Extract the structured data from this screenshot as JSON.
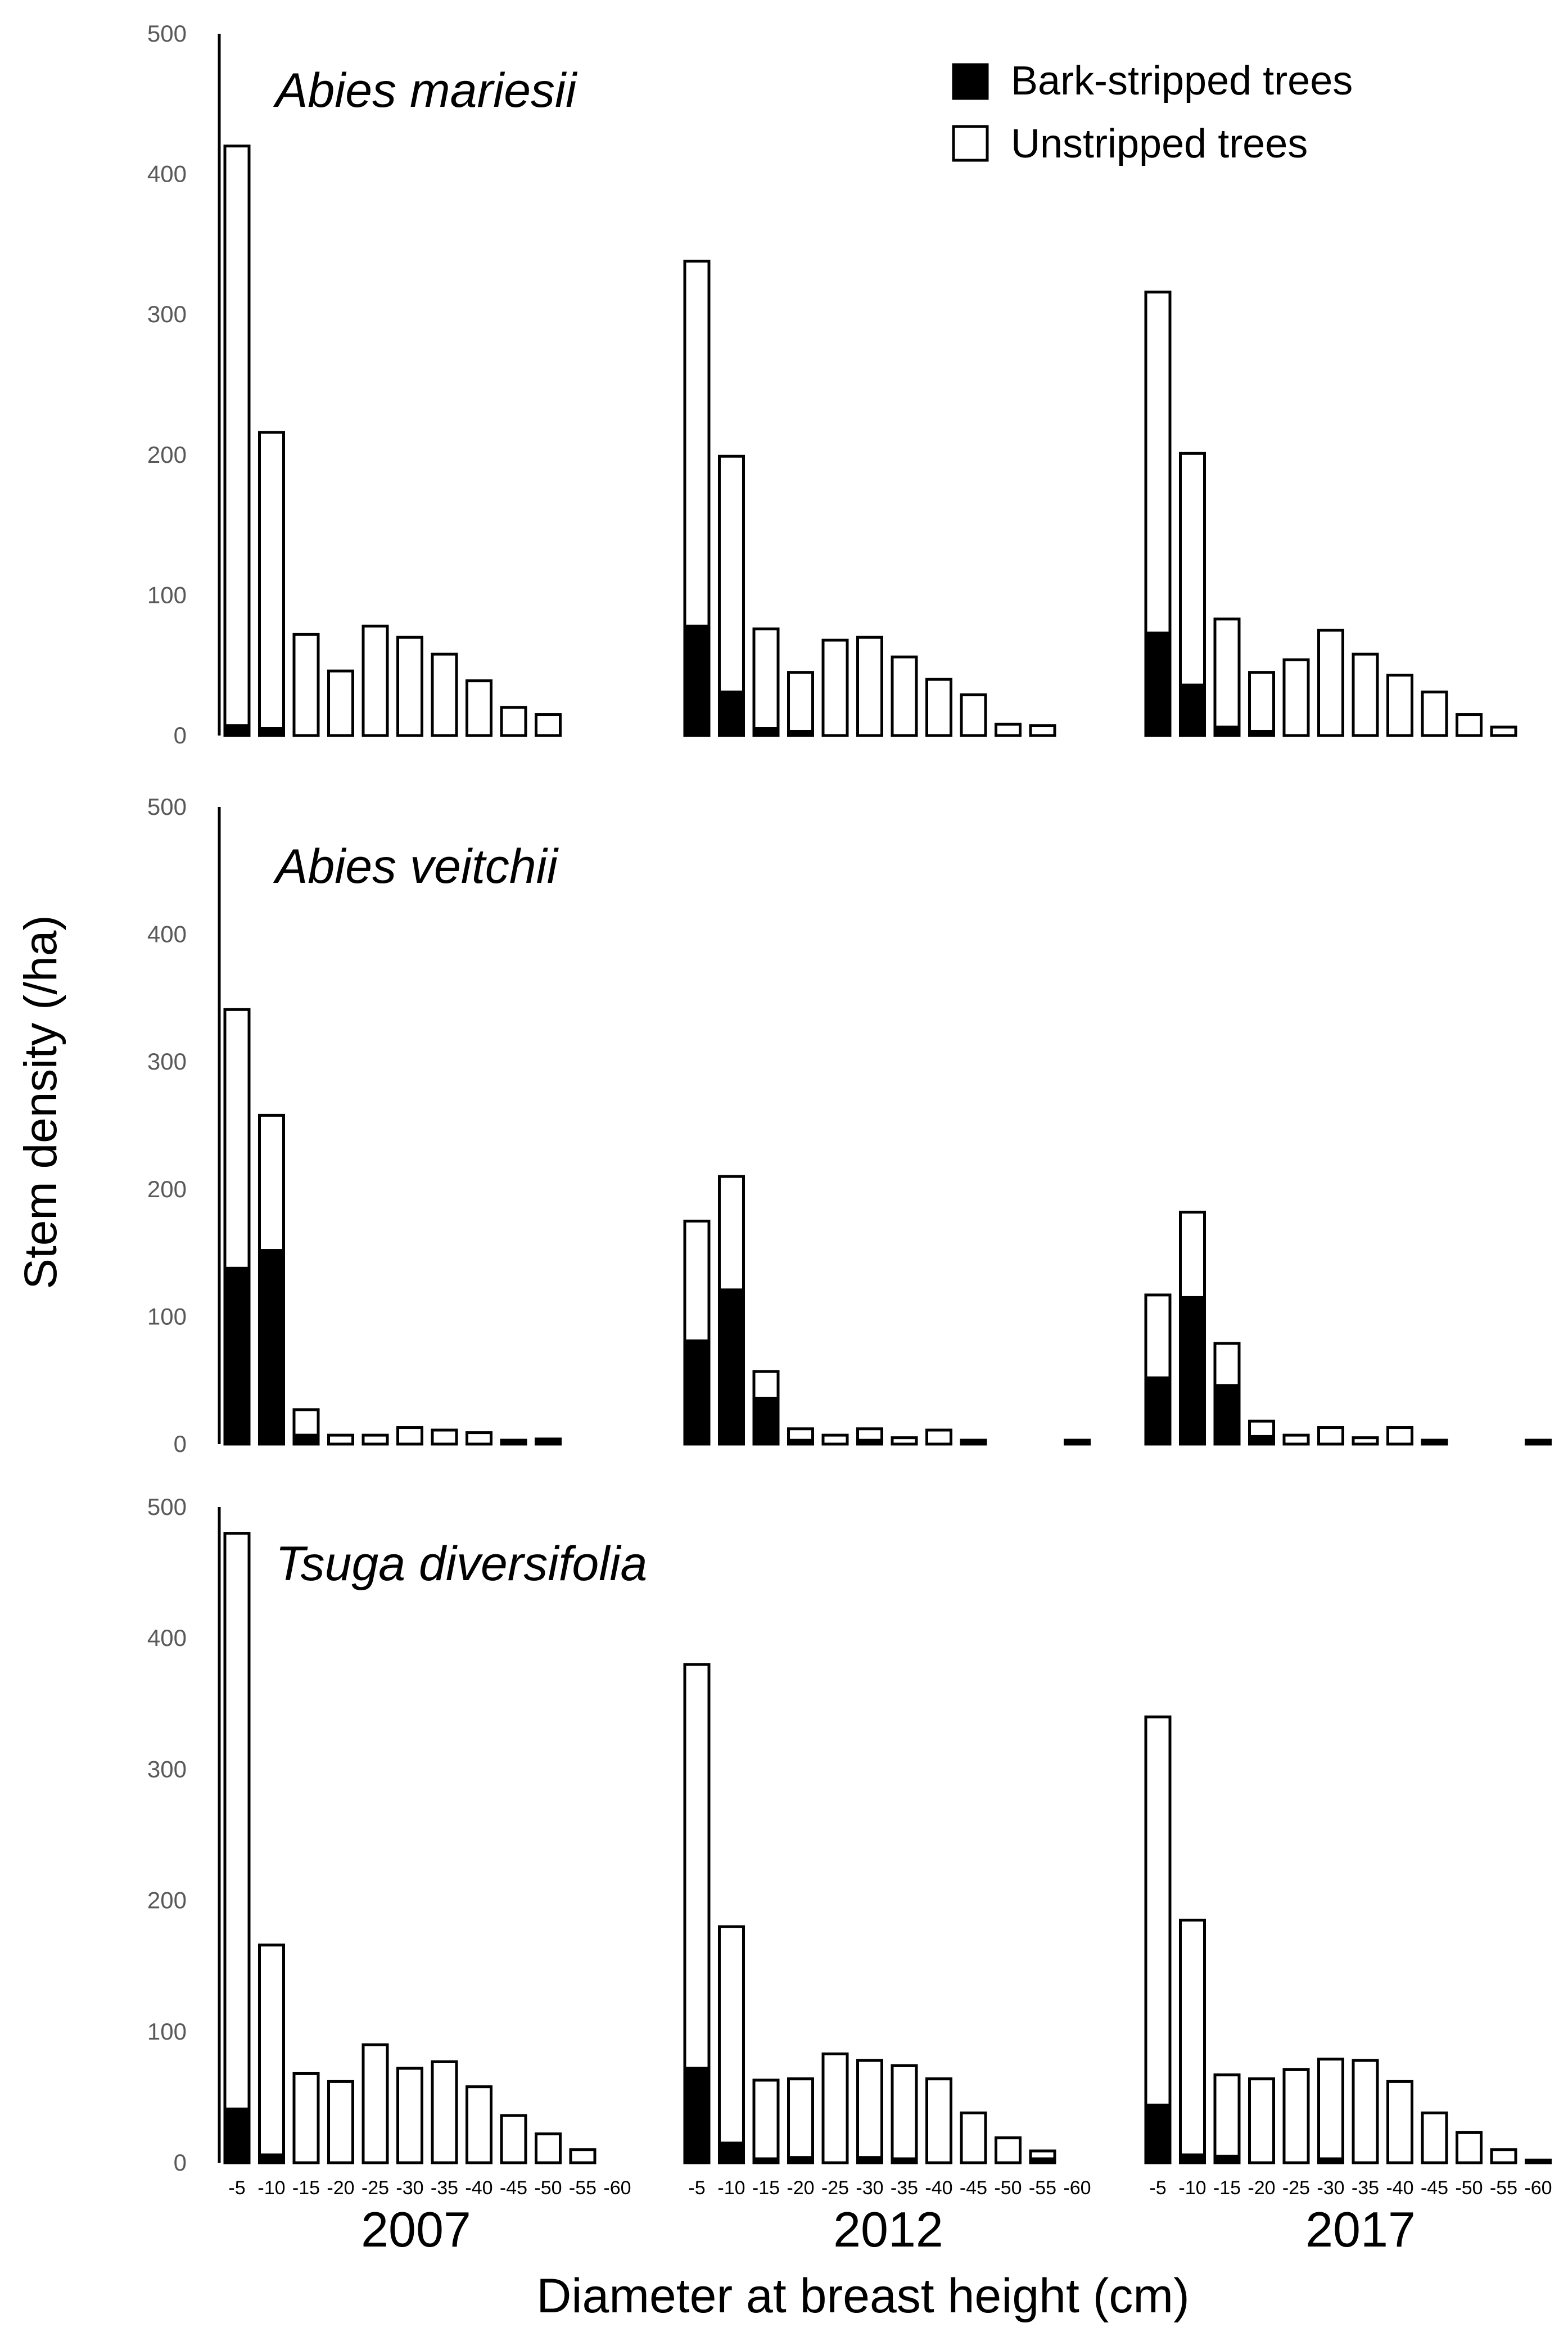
{
  "chart_data": {
    "type": "bar",
    "stacked": true,
    "ylabel": "Stem density (/ha)",
    "xlabel": "Diameter at breast height (cm)",
    "years": [
      "2007",
      "2012",
      "2017"
    ],
    "categories": [
      "-5",
      "-10",
      "-15",
      "-20",
      "-25",
      "-30",
      "-35",
      "-40",
      "-45",
      "-50",
      "-55",
      "-60"
    ],
    "yticks": [
      "0",
      "100",
      "200",
      "300",
      "400",
      "500"
    ],
    "ylim": [
      0,
      500
    ],
    "legend": {
      "position": "top-right",
      "entries": [
        {
          "name": "Bark-stripped trees",
          "color": "#000000"
        },
        {
          "name": "Unstripped trees",
          "color": "#ffffff"
        }
      ]
    },
    "panels": [
      {
        "species": "Abies mariesii",
        "groups": [
          {
            "year": "2007",
            "stripped": [
              7,
              5,
              0,
              0,
              0,
              0,
              0,
              0,
              0,
              0,
              0,
              0
            ],
            "unstripped": [
              413,
              211,
              72,
              46,
              78,
              70,
              58,
              39,
              20,
              15,
              0,
              0
            ]
          },
          {
            "year": "2012",
            "stripped": [
              78,
              31,
              5,
              3,
              0,
              0,
              0,
              0,
              0,
              0,
              0,
              0
            ],
            "unstripped": [
              260,
              168,
              71,
              42,
              68,
              70,
              56,
              40,
              29,
              8,
              7,
              0
            ]
          },
          {
            "year": "2017",
            "stripped": [
              73,
              36,
              6,
              3,
              0,
              0,
              0,
              0,
              0,
              0,
              0,
              0
            ],
            "unstripped": [
              243,
              165,
              77,
              42,
              54,
              75,
              58,
              43,
              31,
              15,
              6,
              0
            ]
          }
        ]
      },
      {
        "species": "Abies veitchii",
        "groups": [
          {
            "year": "2007",
            "stripped": [
              138,
              152,
              7,
              0,
              0,
              0,
              0,
              0,
              3,
              2,
              0,
              0
            ],
            "unstripped": [
              203,
              106,
              20,
              7,
              7,
              13,
              11,
              9,
              0,
              2,
              0,
              0
            ]
          },
          {
            "year": "2012",
            "stripped": [
              81,
              121,
              36,
              3,
              0,
              3,
              0,
              0,
              3,
              0,
              0,
              3
            ],
            "unstripped": [
              94,
              89,
              21,
              9,
              7,
              9,
              5,
              11,
              0,
              0,
              0,
              0
            ]
          },
          {
            "year": "2017",
            "stripped": [
              52,
              115,
              46,
              6,
              0,
              0,
              0,
              0,
              3,
              0,
              0,
              3
            ],
            "unstripped": [
              65,
              67,
              33,
              12,
              7,
              13,
              5,
              13,
              0,
              0,
              0,
              0
            ]
          }
        ]
      },
      {
        "species": "Tsuga diversifolia",
        "groups": [
          {
            "year": "2007",
            "stripped": [
              41,
              6,
              0,
              0,
              0,
              0,
              0,
              0,
              0,
              0,
              0,
              0
            ],
            "unstripped": [
              439,
              160,
              68,
              62,
              90,
              72,
              77,
              58,
              36,
              22,
              10,
              0
            ]
          },
          {
            "year": "2012",
            "stripped": [
              72,
              15,
              3,
              4,
              0,
              4,
              3,
              0,
              0,
              0,
              3,
              0
            ],
            "unstripped": [
              308,
              165,
              60,
              60,
              83,
              74,
              71,
              64,
              38,
              19,
              6,
              0
            ]
          },
          {
            "year": "2017",
            "stripped": [
              44,
              6,
              5,
              0,
              0,
              3,
              0,
              0,
              0,
              0,
              0,
              2
            ],
            "unstripped": [
              296,
              179,
              62,
              64,
              71,
              76,
              78,
              62,
              38,
              23,
              10,
              0
            ]
          }
        ]
      }
    ]
  }
}
